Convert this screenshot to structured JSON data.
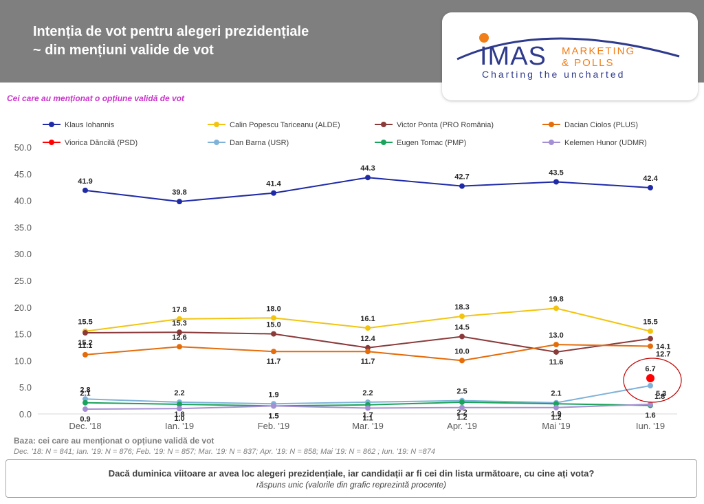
{
  "header": {
    "title_line1": "Intenția de vot pentru alegeri prezidențiale",
    "title_line2": "~ din mențiuni valide de vot"
  },
  "logo": {
    "brand": "IMAS",
    "line1": "MARKETING",
    "line2": "& POLLS",
    "tagline": "Charting the uncharted"
  },
  "subtitle": "Cei care au menționat o opțiune validă de vot",
  "footer": {
    "base": "Baza: cei care au menționat o opțiune validă de vot",
    "sample": "Dec. '18: N = 841; Ian. '19: N = 876; Feb. '19: N = 857; Mar. '19: N = 837; Apr. '19: N = 858; Mai '19: N = 862 ; Iun. '19: N =874"
  },
  "question": {
    "text": "Dacă duminica viitoare ar avea loc alegeri prezidențiale, iar candidații ar fi cei din lista următoare, cu cine ați vota?",
    "note": "răspuns unic (valorile din grafic reprezintă procente)"
  },
  "chart_data": {
    "type": "line",
    "categories": [
      "Dec. '18",
      "Ian. '19",
      "Feb. '19",
      "Mar. '19",
      "Apr. '19",
      "Mai '19",
      "Iun. '19"
    ],
    "ylim": [
      0,
      50
    ],
    "yticks": [
      "0.0",
      "5.0",
      "10.0",
      "15.0",
      "20.0",
      "25.0",
      "30.0",
      "35.0",
      "40.0",
      "45.0",
      "50.0"
    ],
    "legend_position": "top",
    "grid": false,
    "series": [
      {
        "name": "Klaus Iohannis",
        "color": "#1f2aa6",
        "values": [
          41.9,
          39.8,
          41.4,
          44.3,
          42.7,
          43.5,
          42.4
        ],
        "labels": [
          "41.9",
          "39.8",
          "41.4",
          "44.3",
          "42.7",
          "43.5",
          "42.4"
        ],
        "label_pos": [
          "above",
          "above",
          "above",
          "above",
          "above",
          "above",
          "above"
        ]
      },
      {
        "name": "Calin Popescu Tariceanu (ALDE)",
        "color": "#f2c40f",
        "values": [
          15.5,
          17.8,
          18.0,
          16.1,
          18.3,
          19.8,
          15.5
        ],
        "labels": [
          "15.5",
          "17.8",
          "18.0",
          "16.1",
          "18.3",
          "19.8",
          "15.5"
        ],
        "label_pos": [
          "above",
          "above",
          "above",
          "above",
          "above",
          "above",
          "above"
        ]
      },
      {
        "name": "Victor Ponta (PRO România)",
        "color": "#8b3a3a",
        "values": [
          15.2,
          15.3,
          15.0,
          12.4,
          14.5,
          11.6,
          14.1
        ],
        "labels": [
          "15.2",
          "15.3",
          "15.0",
          "12.4",
          "14.5",
          "11.6",
          "14.1"
        ],
        "label_pos": [
          "below",
          "above",
          "above",
          "above",
          "above",
          "below",
          "right"
        ]
      },
      {
        "name": "Dacian Ciolos (PLUS)",
        "color": "#e46c0a",
        "values": [
          11.1,
          12.6,
          11.7,
          11.7,
          10.0,
          13.0,
          12.7
        ],
        "labels": [
          "11.1",
          "12.6",
          "11.7",
          "11.7",
          "10.0",
          "13.0",
          "12.7"
        ],
        "label_pos": [
          "above",
          "above",
          "below",
          "below",
          "above",
          "above",
          "right"
        ]
      },
      {
        "name": "Viorica Dăncilă (PSD)",
        "color": "#ff0000",
        "values": [
          null,
          null,
          null,
          null,
          null,
          null,
          6.7
        ],
        "labels": [
          "",
          "",
          "",
          "",
          "",
          "",
          "6.7"
        ],
        "label_pos": [
          "above",
          "above",
          "above",
          "above",
          "above",
          "above",
          "above"
        ]
      },
      {
        "name": "Dan Barna (USR)",
        "color": "#7fb2d9",
        "values": [
          2.8,
          2.2,
          1.9,
          2.2,
          2.5,
          2.1,
          5.3
        ],
        "labels": [
          "2.8",
          "2.2",
          "1.9",
          "2.2",
          "2.5",
          "2.1",
          "5.3"
        ],
        "label_pos": [
          "above",
          "above",
          "above",
          "above",
          "above",
          "above",
          "right"
        ]
      },
      {
        "name": "Eugen Tomac (PMP)",
        "color": "#1aa35a",
        "values": [
          2.1,
          1.8,
          1.5,
          1.7,
          2.2,
          1.9,
          1.6
        ],
        "labels": [
          "2.1",
          "1.8",
          "1.5",
          "1.7",
          "2.2",
          "1.9",
          "1.6"
        ],
        "label_pos": [
          "above",
          "below",
          "below",
          "below",
          "below",
          "below",
          "below"
        ]
      },
      {
        "name": "Kelemen Hunor (UDMR)",
        "color": "#a58fd4",
        "values": [
          0.9,
          1.0,
          1.5,
          1.1,
          1.2,
          1.2,
          1.8
        ],
        "labels": [
          "0.9",
          "1.0",
          "1.5",
          "1.1",
          "1.2",
          "1.2",
          "1.8"
        ],
        "label_pos": [
          "below",
          "below",
          "below",
          "below",
          "below",
          "below",
          "above-right"
        ]
      }
    ],
    "highlight_series": "Viorica Dăncilă (PSD)"
  }
}
